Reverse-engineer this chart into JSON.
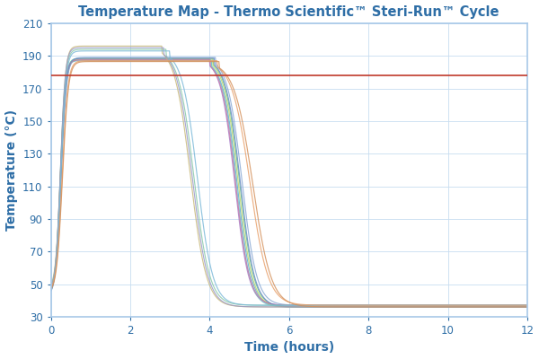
{
  "title": "Temperature Map - Thermo Scientific™ Steri-Run™ Cycle",
  "xlabel": "Time (hours)",
  "ylabel": "Temperature (°C)",
  "xlim": [
    0,
    12
  ],
  "ylim": [
    30,
    210
  ],
  "yticks": [
    30,
    50,
    70,
    90,
    110,
    130,
    150,
    170,
    190,
    210
  ],
  "xticks": [
    0,
    2,
    4,
    6,
    8,
    10,
    12
  ],
  "reference_line_y": 178,
  "reference_line_color": "#c0392b",
  "title_color": "#2e6ea6",
  "axis_label_color": "#2e6ea6",
  "tick_label_color": "#2e6ea6",
  "background_color": "#ffffff",
  "border_color": "#a8c8e8",
  "grid_color": "#c8ddf0",
  "curve_colors": [
    "#5ba8d4",
    "#6cbf8e",
    "#a87dc8",
    "#78c8c8",
    "#88a8d4",
    "#b8d468",
    "#c878a8",
    "#6888c8",
    "#c8b878",
    "#88c8a8",
    "#9898c8",
    "#7ab8d8",
    "#e8a06a",
    "#d4905a"
  ],
  "curve_params": [
    {
      "start": 45,
      "rise_rate": 8.0,
      "plateau": 187.5,
      "plateau_end": 4.05,
      "fall_rate": 2.8,
      "end": 36
    },
    {
      "start": 44,
      "rise_rate": 8.2,
      "plateau": 188.5,
      "plateau_end": 4.1,
      "fall_rate": 2.75,
      "end": 36
    },
    {
      "start": 45,
      "rise_rate": 7.8,
      "plateau": 188.0,
      "plateau_end": 4.0,
      "fall_rate": 2.85,
      "end": 37
    },
    {
      "start": 43,
      "rise_rate": 8.5,
      "plateau": 187.0,
      "plateau_end": 4.05,
      "fall_rate": 2.9,
      "end": 36
    },
    {
      "start": 46,
      "rise_rate": 7.5,
      "plateau": 189.0,
      "plateau_end": 4.15,
      "fall_rate": 2.7,
      "end": 37
    },
    {
      "start": 44,
      "rise_rate": 8.0,
      "plateau": 188.0,
      "plateau_end": 4.08,
      "fall_rate": 2.8,
      "end": 36
    },
    {
      "start": 45,
      "rise_rate": 8.3,
      "plateau": 187.5,
      "plateau_end": 4.02,
      "fall_rate": 2.85,
      "end": 37
    },
    {
      "start": 43,
      "rise_rate": 7.9,
      "plateau": 188.5,
      "plateau_end": 4.12,
      "fall_rate": 2.75,
      "end": 36
    },
    {
      "start": 47,
      "rise_rate": 8.1,
      "plateau": 196.0,
      "plateau_end": 2.8,
      "fall_rate": 2.5,
      "end": 36
    },
    {
      "start": 46,
      "rise_rate": 8.0,
      "plateau": 194.0,
      "plateau_end": 2.9,
      "fall_rate": 2.55,
      "end": 37
    },
    {
      "start": 45,
      "rise_rate": 8.2,
      "plateau": 195.0,
      "plateau_end": 2.85,
      "fall_rate": 2.52,
      "end": 36
    },
    {
      "start": 44,
      "rise_rate": 7.8,
      "plateau": 193.0,
      "plateau_end": 3.0,
      "fall_rate": 2.6,
      "end": 37
    },
    {
      "start": 45,
      "rise_rate": 7.0,
      "plateau": 187.0,
      "plateau_end": 4.2,
      "fall_rate": 2.2,
      "end": 37
    },
    {
      "start": 44,
      "rise_rate": 6.8,
      "plateau": 186.5,
      "plateau_end": 4.25,
      "fall_rate": 2.15,
      "end": 36
    }
  ]
}
